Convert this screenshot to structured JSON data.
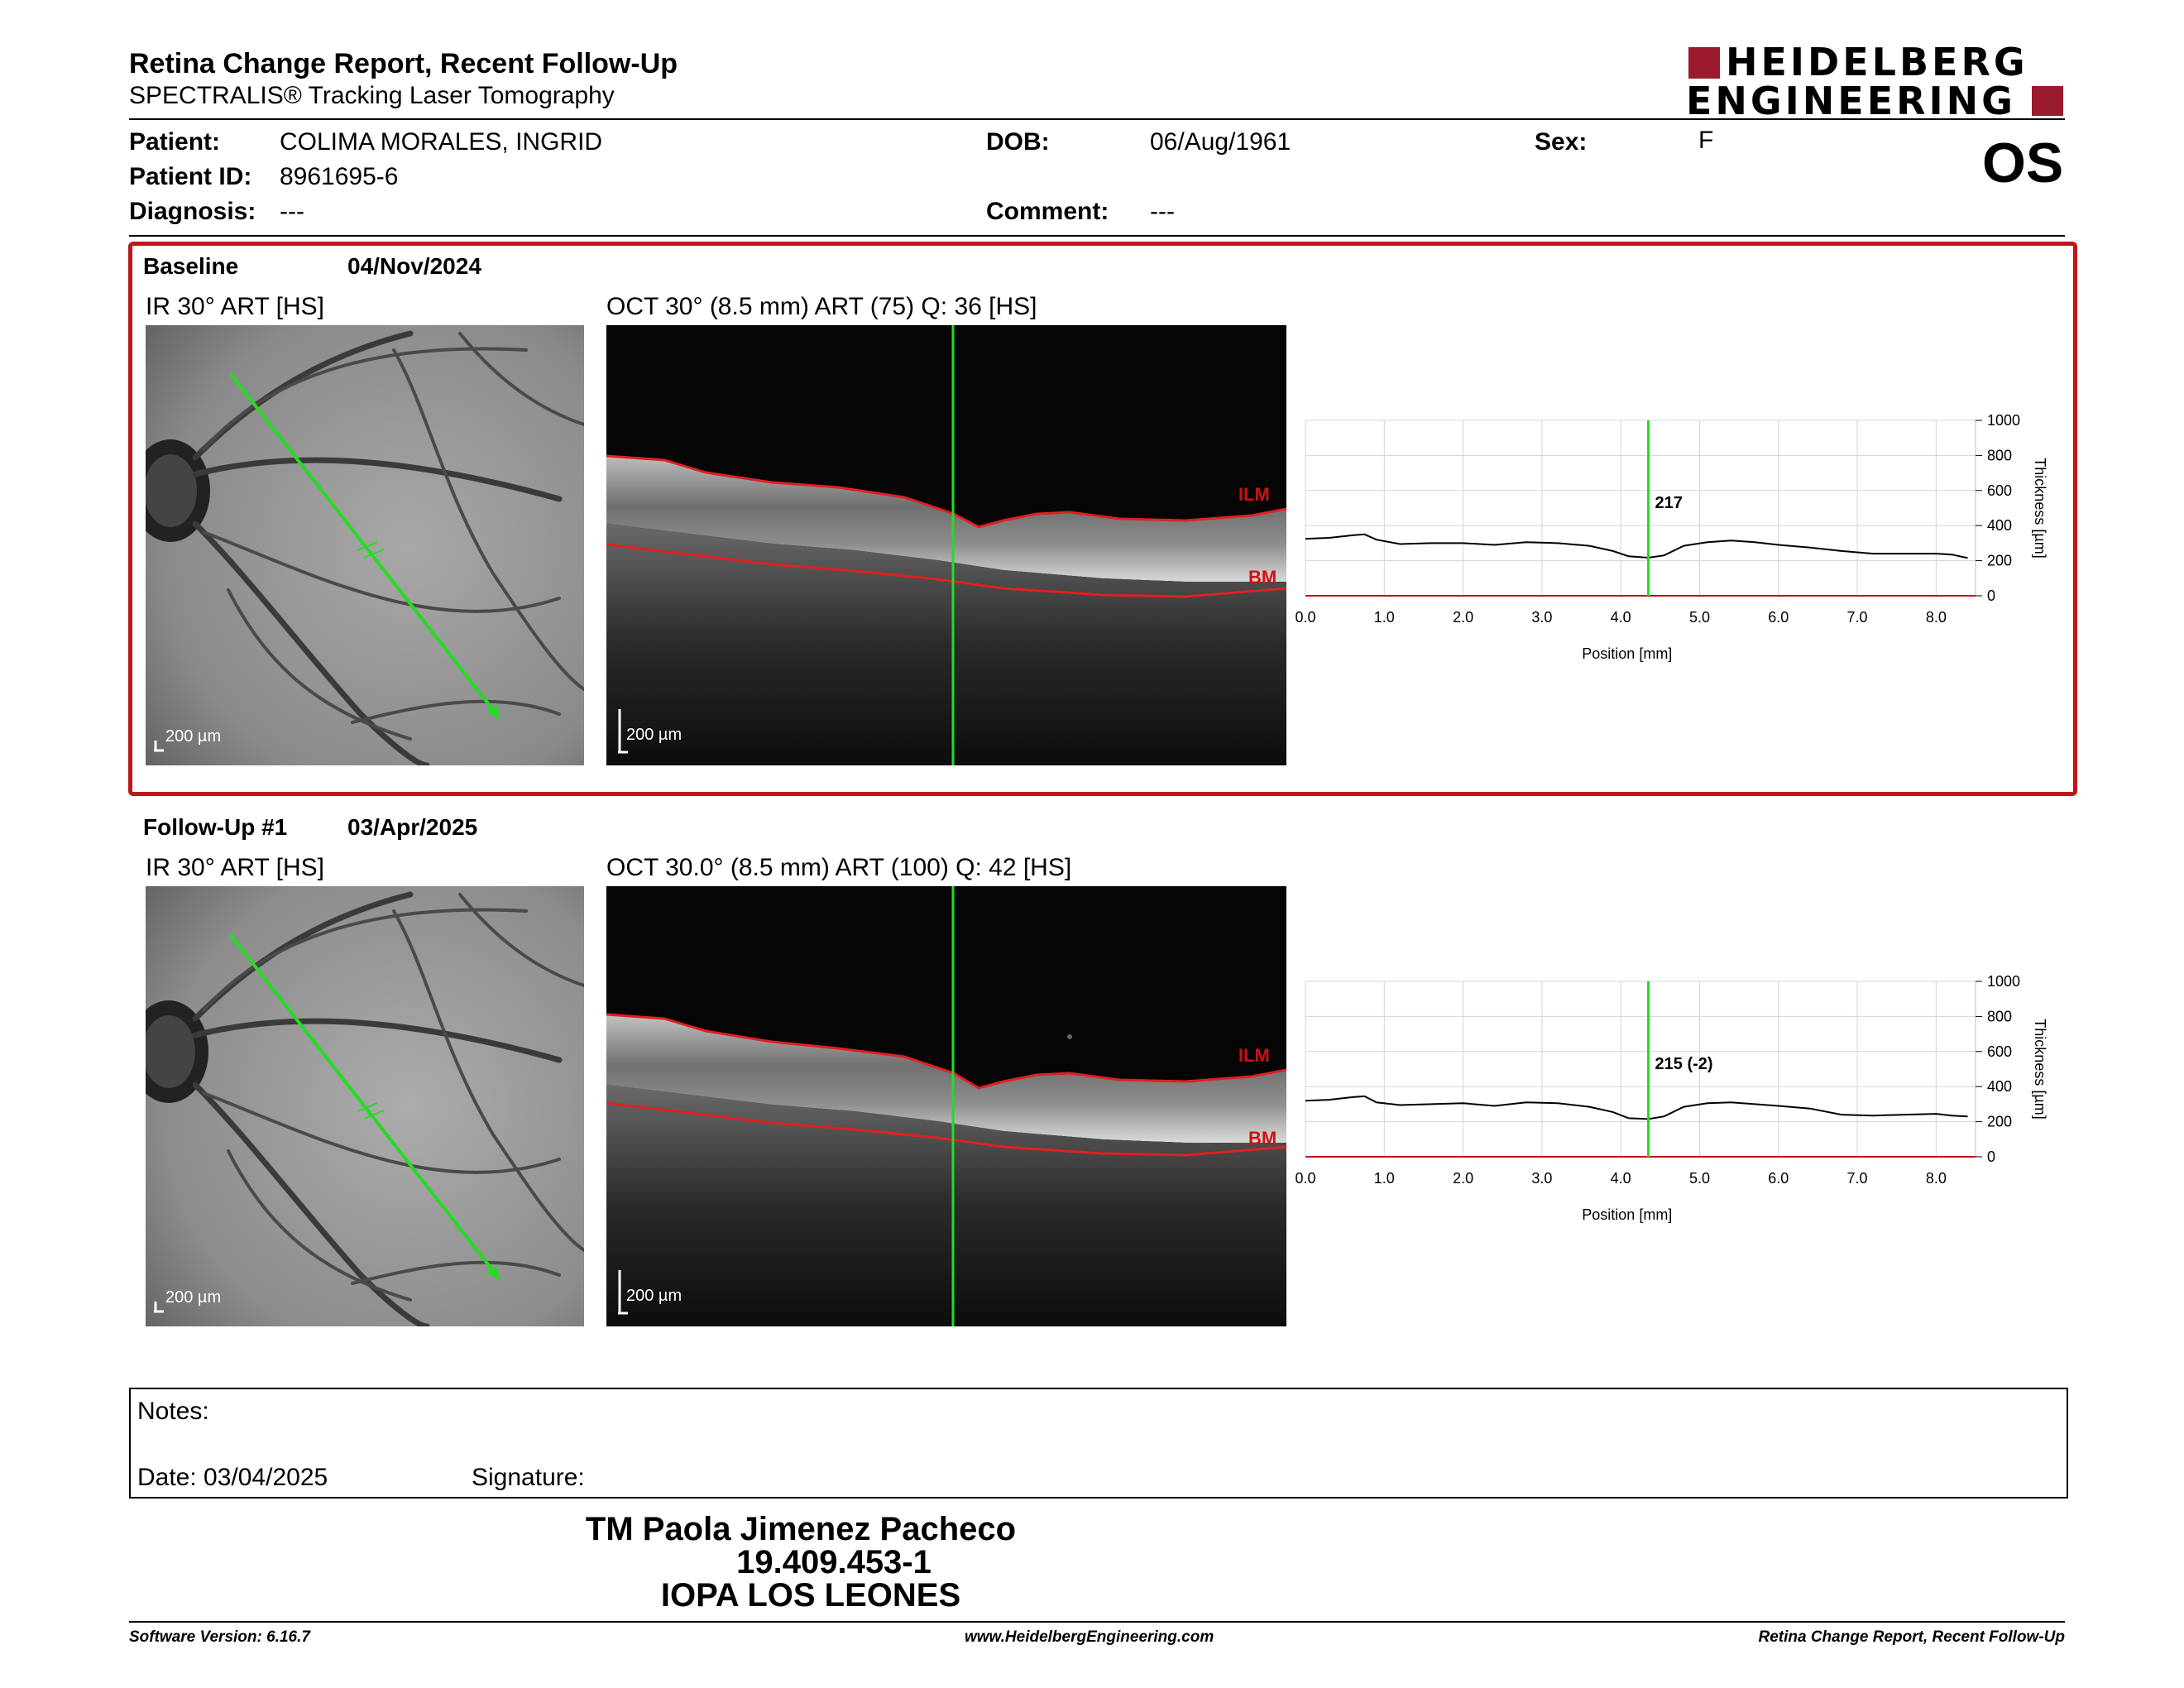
{
  "header": {
    "title": "Retina Change Report, Recent Follow-Up",
    "subtitle": "SPECTRALIS® Tracking Laser Tomography",
    "brand_line1": "HEIDELBERG",
    "brand_line2": "ENGINEERING",
    "brand_color": "#9a1b2e",
    "eye": "OS"
  },
  "patient": {
    "patient_label": "Patient:",
    "patient_value": "COLIMA MORALES, INGRID",
    "id_label": "Patient ID:",
    "id_value": "8961695-6",
    "diagnosis_label": "Diagnosis:",
    "diagnosis_value": "---",
    "dob_label": "DOB:",
    "dob_value": "06/Aug/1961",
    "comment_label": "Comment:",
    "comment_value": "---",
    "sex_label": "Sex:",
    "sex_value": "F"
  },
  "baseline": {
    "label": "Baseline",
    "date": "04/Nov/2024",
    "ir_caption": "IR 30° ART [HS]",
    "oct_caption": "OCT 30° (8.5 mm) ART (75) Q: 36 [HS]",
    "scale": "200 µm",
    "ilm": "ILM",
    "bm": "BM",
    "marker_label": "217"
  },
  "followup": {
    "label": "Follow-Up #1",
    "date": "03/Apr/2025",
    "ir_caption": "IR 30° ART [HS]",
    "oct_caption": "OCT 30.0° (8.5 mm) ART (100) Q: 42 [HS]",
    "scale": "200 µm",
    "ilm": "ILM",
    "bm": "BM",
    "marker_label": "215 (-2)"
  },
  "chart_data": [
    {
      "type": "line",
      "xlabel": "Position [mm]",
      "ylabel": "Thickness [µm]",
      "xlim": [
        0,
        8.5
      ],
      "ylim": [
        0,
        1000
      ],
      "xticks": [
        "0.0",
        "1.0",
        "2.0",
        "3.0",
        "4.0",
        "5.0",
        "6.0",
        "7.0",
        "8.0"
      ],
      "yticks": [
        "0",
        "200",
        "400",
        "600",
        "800",
        "1000"
      ],
      "marker_x": 4.35,
      "marker_label": "217",
      "x": [
        0,
        0.3,
        0.6,
        0.75,
        0.9,
        1.2,
        1.6,
        2.0,
        2.4,
        2.8,
        3.2,
        3.6,
        3.9,
        4.1,
        4.35,
        4.55,
        4.8,
        5.1,
        5.4,
        5.7,
        6.0,
        6.4,
        6.8,
        7.2,
        7.6,
        8.0,
        8.2,
        8.4
      ],
      "y": [
        325,
        330,
        345,
        350,
        320,
        295,
        300,
        300,
        290,
        305,
        300,
        285,
        255,
        225,
        217,
        230,
        285,
        305,
        315,
        305,
        290,
        275,
        255,
        240,
        240,
        240,
        235,
        215
      ]
    },
    {
      "type": "line",
      "xlabel": "Position [mm]",
      "ylabel": "Thickness [µm]",
      "xlim": [
        0,
        8.5
      ],
      "ylim": [
        0,
        1000
      ],
      "xticks": [
        "0.0",
        "1.0",
        "2.0",
        "3.0",
        "4.0",
        "5.0",
        "6.0",
        "7.0",
        "8.0"
      ],
      "yticks": [
        "0",
        "200",
        "400",
        "600",
        "800",
        "1000"
      ],
      "marker_x": 4.35,
      "marker_label": "215 (-2)",
      "x": [
        0,
        0.3,
        0.6,
        0.75,
        0.9,
        1.2,
        1.6,
        2.0,
        2.4,
        2.8,
        3.2,
        3.6,
        3.9,
        4.1,
        4.35,
        4.55,
        4.8,
        5.1,
        5.4,
        5.7,
        6.0,
        6.4,
        6.8,
        7.2,
        7.6,
        8.0,
        8.2,
        8.4
      ],
      "y": [
        320,
        325,
        340,
        345,
        310,
        295,
        300,
        305,
        290,
        310,
        305,
        285,
        255,
        220,
        215,
        230,
        285,
        305,
        310,
        300,
        290,
        275,
        240,
        235,
        240,
        245,
        235,
        230
      ]
    }
  ],
  "notes": {
    "label": "Notes:",
    "date_label": "Date: 03/04/2025",
    "signature_label": "Signature:"
  },
  "signatory": {
    "name": "TM Paola Jimenez Pacheco",
    "rut": "19.409.453-1",
    "institution": "IOPA LOS LEONES"
  },
  "footer": {
    "version": "Software Version: 6.16.7",
    "url": "www.HeidelbergEngineering.com",
    "report": "Retina Change Report, Recent Follow-Up"
  }
}
